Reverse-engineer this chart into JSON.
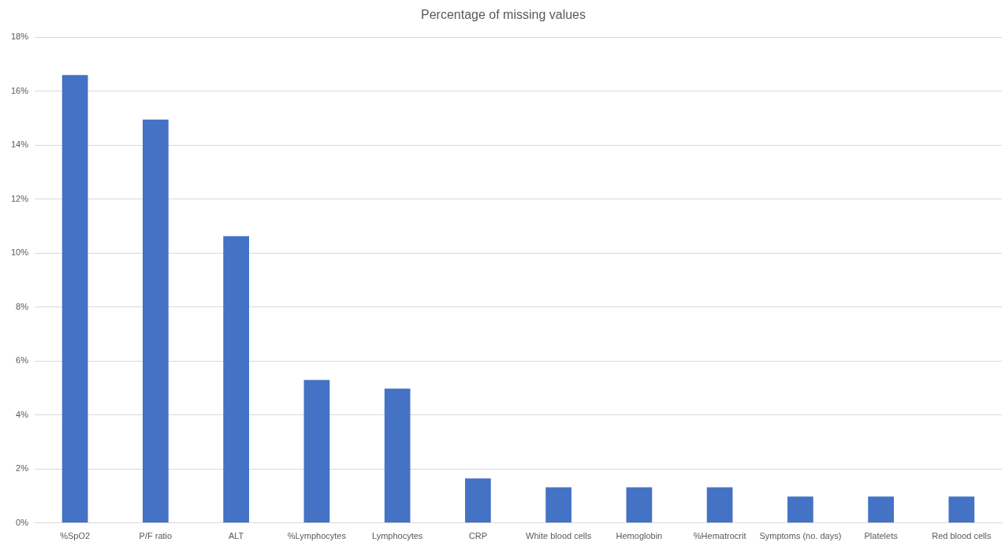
{
  "chart_data": {
    "type": "bar",
    "title": "Percentage of missing values",
    "categories": [
      "%SpO2",
      "P/F ratio",
      "ALT",
      "%Lymphocytes",
      "Lymphocytes",
      "CRP",
      "White blood cells",
      "Hemoglobin",
      "%Hematrocrit",
      "Symptoms (no. days)",
      "Platelets",
      "Red blood cells"
    ],
    "values": [
      16.6,
      14.95,
      10.63,
      5.3,
      4.98,
      1.65,
      1.32,
      1.32,
      1.32,
      0.98,
      0.98,
      0.98
    ],
    "color": "#4472c4",
    "ylim": [
      0,
      18
    ],
    "yticks": [
      {
        "value": 0,
        "label": "0%"
      },
      {
        "value": 2,
        "label": "2%"
      },
      {
        "value": 4,
        "label": "4%"
      },
      {
        "value": 6,
        "label": "6%"
      },
      {
        "value": 8,
        "label": "8%"
      },
      {
        "value": 10,
        "label": "10%"
      },
      {
        "value": 12,
        "label": "12%"
      },
      {
        "value": 14,
        "label": "14%"
      },
      {
        "value": 16,
        "label": "16%"
      },
      {
        "value": 18,
        "label": "18%"
      }
    ],
    "grid": "y",
    "legend": false
  }
}
